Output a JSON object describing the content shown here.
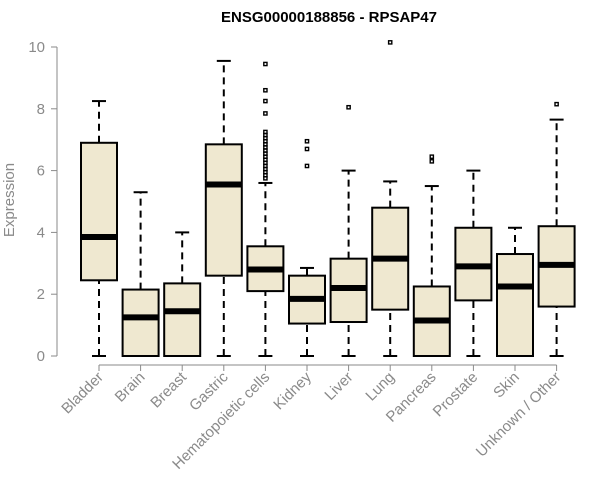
{
  "chart_data": {
    "type": "boxplot",
    "title": "ENSG00000188856 - RPSAP47",
    "ylabel": "Expression",
    "ylim": [
      0,
      10
    ],
    "yticks": [
      0,
      2,
      4,
      6,
      8,
      10
    ],
    "categories": [
      "Bladder",
      "Brain",
      "Breast",
      "Gastric",
      "Hematopoietic cells",
      "Kidney",
      "Liver",
      "Lung",
      "Pancreas",
      "Prostate",
      "Skin",
      "Unknown / Other"
    ],
    "boxes": [
      {
        "min": 0,
        "q1": 2.45,
        "median": 3.85,
        "q3": 6.9,
        "max": 8.25,
        "outliers": []
      },
      {
        "min": 0,
        "q1": 0,
        "median": 1.25,
        "q3": 2.15,
        "max": 5.3,
        "outliers": []
      },
      {
        "min": 0,
        "q1": 0,
        "median": 1.45,
        "q3": 2.35,
        "max": 4.0,
        "outliers": []
      },
      {
        "min": 0,
        "q1": 2.6,
        "median": 5.55,
        "q3": 6.85,
        "max": 9.55,
        "outliers": []
      },
      {
        "min": 0,
        "q1": 2.1,
        "median": 2.8,
        "q3": 3.55,
        "max": 5.6,
        "outliers": [
          5.75,
          5.85,
          5.95,
          6.05,
          6.15,
          6.25,
          6.35,
          6.45,
          6.55,
          6.65,
          6.75,
          6.85,
          6.95,
          7.05,
          7.15,
          7.25,
          7.85,
          8.25,
          8.6,
          9.45
        ]
      },
      {
        "min": 0,
        "q1": 1.05,
        "median": 1.85,
        "q3": 2.6,
        "max": 2.85,
        "outliers": [
          6.15,
          6.7,
          6.95
        ]
      },
      {
        "min": 0,
        "q1": 1.1,
        "median": 2.2,
        "q3": 3.15,
        "max": 6.0,
        "outliers": [
          8.05
        ]
      },
      {
        "min": 0,
        "q1": 1.5,
        "median": 3.15,
        "q3": 4.8,
        "max": 5.65,
        "outliers": [
          10.15
        ]
      },
      {
        "min": 0,
        "q1": 0,
        "median": 1.15,
        "q3": 2.25,
        "max": 5.5,
        "outliers": [
          6.3,
          6.45
        ]
      },
      {
        "min": 0,
        "q1": 1.8,
        "median": 2.9,
        "q3": 4.15,
        "max": 6.0,
        "outliers": []
      },
      {
        "min": 0,
        "q1": 0,
        "median": 2.25,
        "q3": 3.3,
        "max": 4.15,
        "outliers": []
      },
      {
        "min": 0,
        "q1": 1.6,
        "median": 2.95,
        "q3": 4.2,
        "max": 7.65,
        "outliers": [
          8.15
        ]
      }
    ]
  }
}
